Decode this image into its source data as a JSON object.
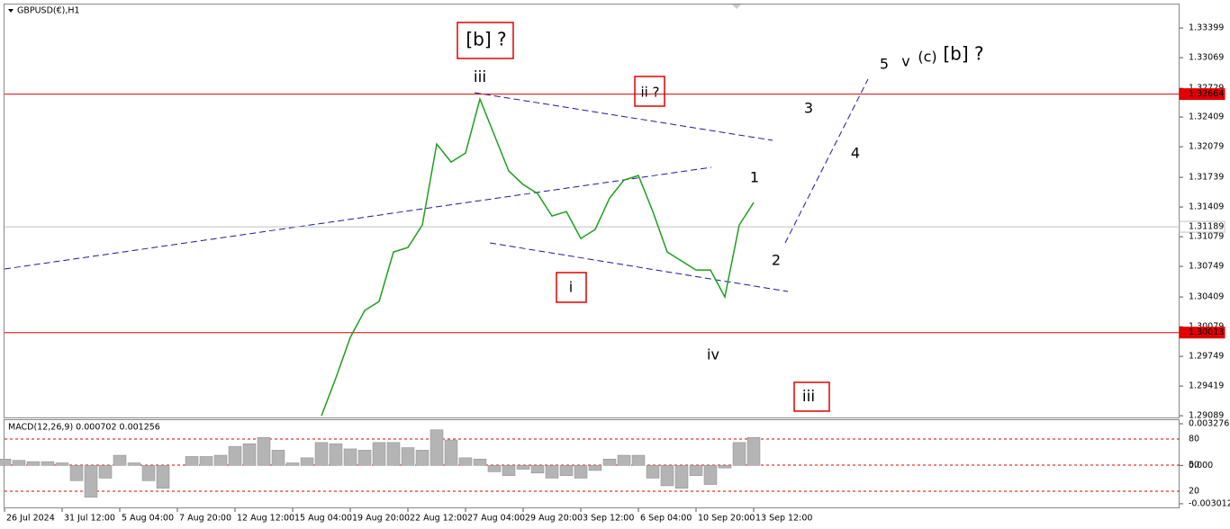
{
  "symbol": "GBPUSD(€),H1",
  "chart_data": [
    {
      "type": "line",
      "color": "#1e9e1e",
      "categories": [
        "26 Jul 2024",
        null,
        null,
        null,
        "31 Jul 12:00",
        null,
        null,
        null,
        "5 Aug 04:00",
        null,
        null,
        null,
        "7 Aug 20:00",
        null,
        null,
        null,
        "12 Aug 12:00",
        null,
        null,
        null,
        "15 Aug 04:00",
        null,
        null,
        null,
        "19 Aug 20:00",
        null,
        null,
        null,
        "22 Aug 12:00",
        null,
        null,
        null,
        "27 Aug 04:00",
        null,
        null,
        null,
        "29 Aug 20:00",
        null,
        null,
        null,
        "3 Sep 12:00",
        null,
        null,
        null,
        "6 Sep 04:00",
        null,
        null,
        null,
        "10 Sep 20:00",
        null,
        null,
        null,
        "13 Sep 12:00",
        null,
        null,
        null,
        null,
        null,
        null,
        null,
        null,
        null,
        null,
        null,
        null,
        null,
        null,
        null,
        null,
        null,
        null,
        null,
        null,
        null,
        null,
        null,
        null,
        null,
        null,
        null,
        null
      ],
      "values": [
        null,
        null,
        null,
        null,
        null,
        null,
        null,
        null,
        null,
        null,
        null,
        null,
        null,
        null,
        null,
        null,
        null,
        null,
        null,
        null,
        null,
        null,
        1.29089,
        1.29509,
        1.29959,
        1.30259,
        1.30359,
        1.30909,
        1.30959,
        1.31209,
        1.32109,
        1.31909,
        1.32009,
        1.32609,
        1.32209,
        1.31809,
        1.31659,
        1.31559,
        1.31309,
        1.31359,
        1.31059,
        1.31159,
        1.31509,
        1.31709,
        1.31759,
        1.31359,
        1.30909,
        1.30809,
        1.30709,
        1.30709,
        1.30409,
        1.31209,
        1.31459,
        null,
        null,
        null,
        null,
        null,
        null,
        null,
        null,
        null,
        null,
        null,
        null,
        null,
        null,
        null,
        null,
        null,
        null,
        null,
        null,
        null,
        null,
        null,
        null,
        null,
        null,
        null,
        null
      ],
      "ylim": [
        1.2907,
        1.3366
      ],
      "yticks": [
        1.33399,
        1.33069,
        1.32729,
        1.32409,
        1.32079,
        1.31739,
        1.31409,
        1.31079,
        1.30749,
        1.30409,
        1.30079,
        1.29749,
        1.29419,
        1.29089
      ],
      "grid": false,
      "hlines": [
        {
          "value": 1.32664,
          "color": "#e00000"
        },
        {
          "value": 1.30013,
          "color": "#e00000"
        },
        {
          "value": 1.31189,
          "color": "#c0c0c0"
        }
      ],
      "annotations": [
        "[b] ?",
        "iii",
        "ii ?",
        "3",
        "5",
        "v",
        "(c)",
        "[b] ?",
        "4",
        "1",
        "2",
        "i",
        "iv",
        "iii"
      ]
    },
    {
      "type": "histogram",
      "title": "MACD(12,26,9) 0.000702 0.001256",
      "color": "#b4b4b4",
      "values": [
        0.0005,
        0.0004,
        0.0003,
        0.0003,
        0.0002,
        -0.0012,
        -0.0025,
        -0.001,
        0.0008,
        0.0002,
        -0.0012,
        -0.0018,
        0.0,
        0.0007,
        0.0007,
        0.0008,
        0.0015,
        0.0017,
        0.0022,
        0.0012,
        0.0002,
        0.0006,
        0.0018,
        0.0017,
        0.0013,
        0.0012,
        0.0018,
        0.0018,
        0.0014,
        0.0012,
        0.0028,
        0.002,
        0.0006,
        0.0005,
        -0.0005,
        -0.0008,
        -0.0003,
        -0.0006,
        -0.001,
        -0.0008,
        -0.001,
        -0.0004,
        0.0005,
        0.0008,
        0.0008,
        -0.001,
        -0.0016,
        -0.0018,
        -0.0008,
        -0.0015,
        -0.0002,
        0.0018,
        0.0022,
        null,
        null,
        null,
        null,
        null,
        null,
        null,
        null,
        null,
        null,
        null,
        null,
        null,
        null,
        null,
        null,
        null,
        null,
        null,
        null,
        null,
        null,
        null,
        null,
        null,
        null,
        null,
        null
      ],
      "ylim": [
        -0.0033,
        0.00363
      ],
      "yticks": [
        0.003276,
        {
          "value": 0,
          "label": "0.000"
        },
        -0.003012
      ],
      "y2lim": [
        1.4,
        102.8
      ],
      "y2ticks": [
        80,
        50,
        20
      ]
    }
  ]
}
